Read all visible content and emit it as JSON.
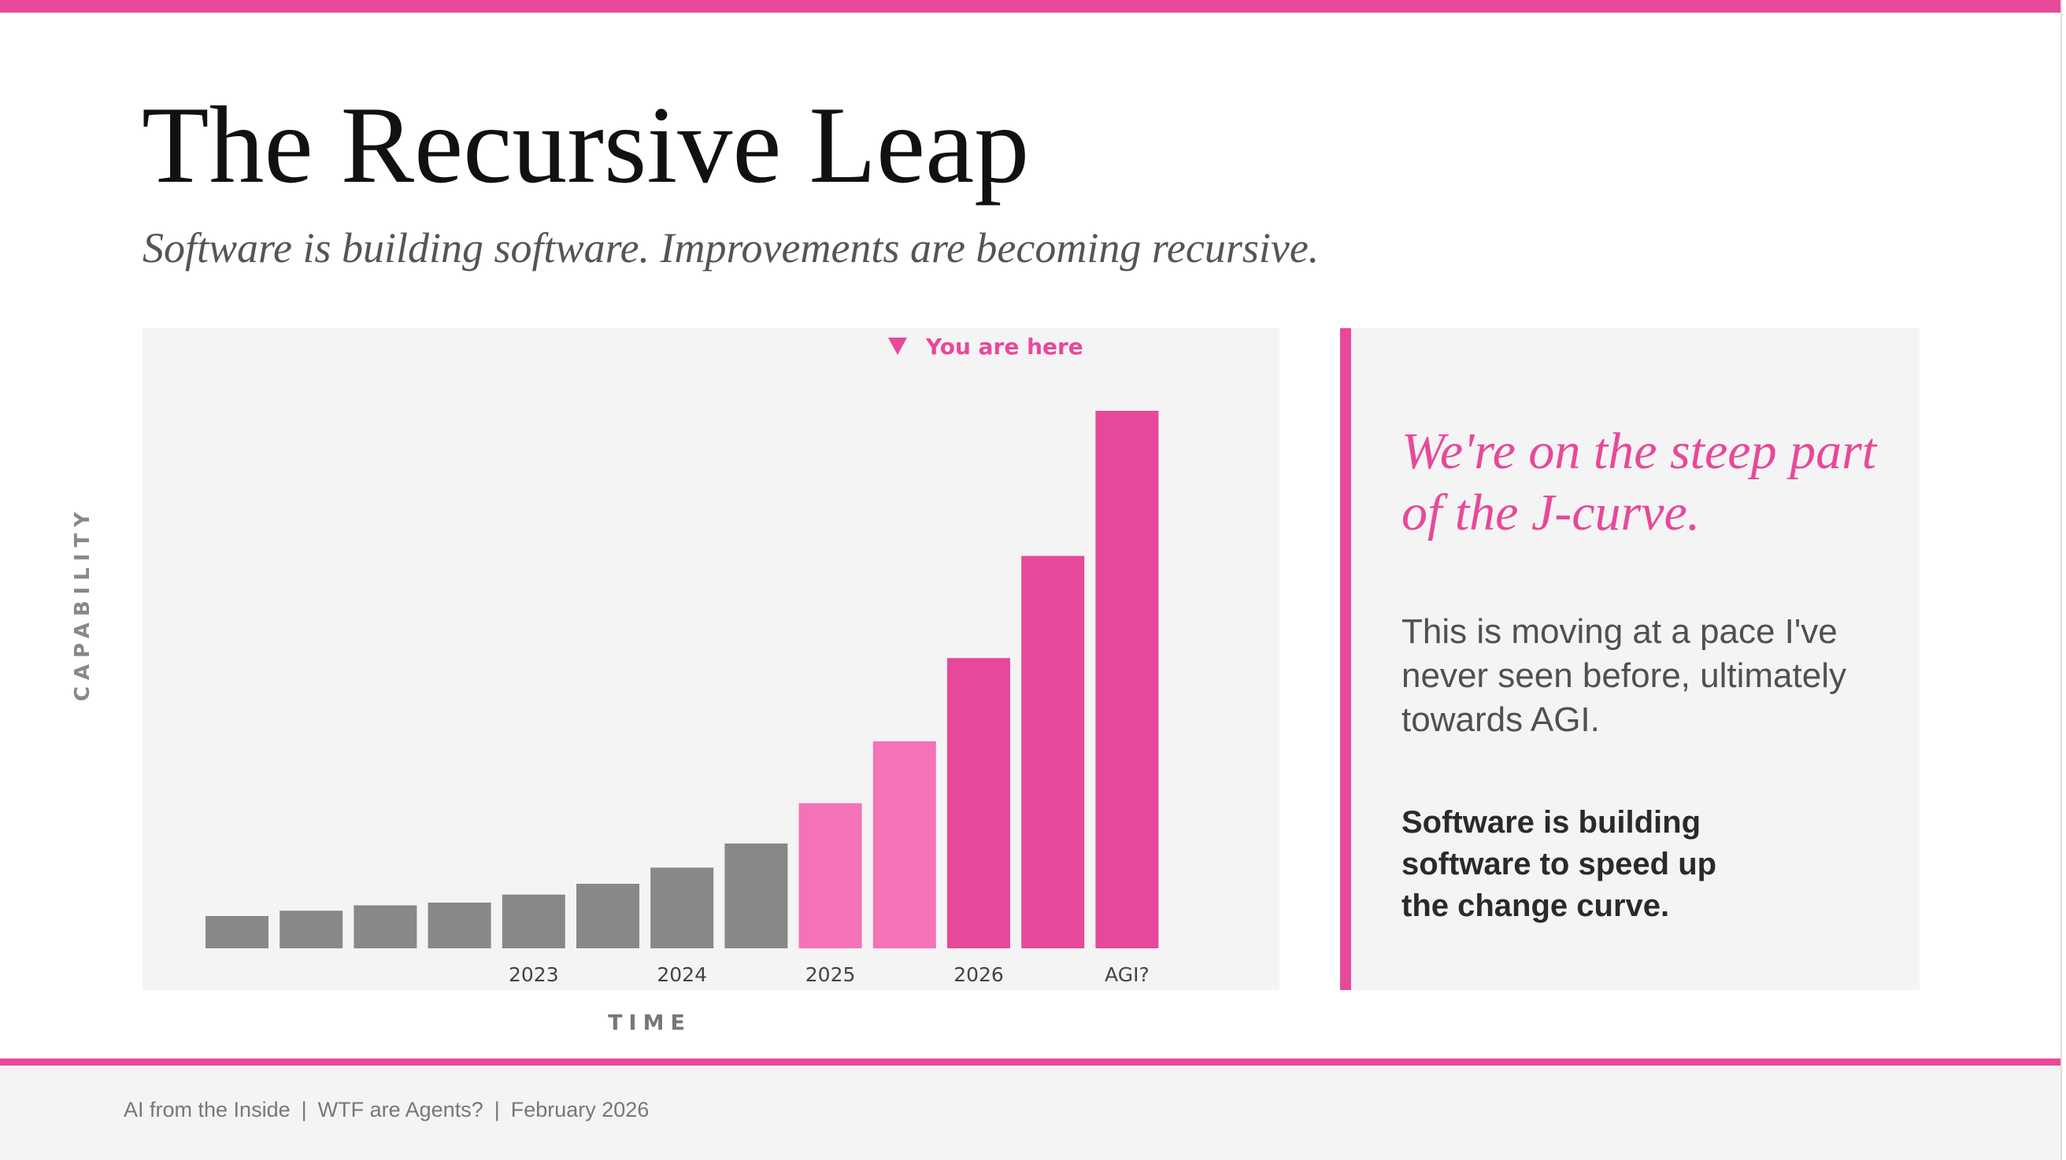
{
  "slide": {
    "title": "The Recursive Leap",
    "subtitle": "Software is building software. Improvements are becoming recursive."
  },
  "colors": {
    "accent": "#e8489a",
    "accent_light": "#f472b6",
    "bar_gray": "#888888",
    "panel_bg": "#f4f4f4"
  },
  "chart": {
    "marker_label": "You are here",
    "marker_icon": "triangle-down-icon"
  },
  "chart_data": {
    "type": "bar",
    "title": "",
    "xlabel": "TIME",
    "ylabel": "CAPABILITY",
    "ylim": [
      0,
      100
    ],
    "grid": false,
    "legend": "none",
    "categories": [
      "",
      "",
      "",
      "",
      "2023",
      "",
      "2024",
      "",
      "2025",
      "",
      "2026",
      "",
      "AGI?"
    ],
    "values": [
      6,
      7,
      8,
      8.5,
      10,
      12,
      15,
      19.5,
      27,
      38.5,
      54,
      73,
      100
    ],
    "bar_groups": [
      "past",
      "past",
      "past",
      "past",
      "past",
      "past",
      "past",
      "past",
      "current",
      "current",
      "accelerating",
      "accelerating",
      "accelerating"
    ],
    "group_colors": {
      "past": "#888888",
      "current": "#f472b6",
      "accelerating": "#e8489a"
    },
    "annotations": [
      {
        "text": "You are here",
        "position": "top, above 2025-2026"
      }
    ]
  },
  "sidebar": {
    "heading": "We're on the steep part of the J-curve.",
    "body": "This is moving at a pace I've never seen before, ultimately towards AGI.",
    "emphasis": "Software is building software to speed up the change curve."
  },
  "footer": {
    "items": [
      "AI from the Inside",
      "WTF are Agents?",
      "February 2026"
    ],
    "separator": "|"
  }
}
